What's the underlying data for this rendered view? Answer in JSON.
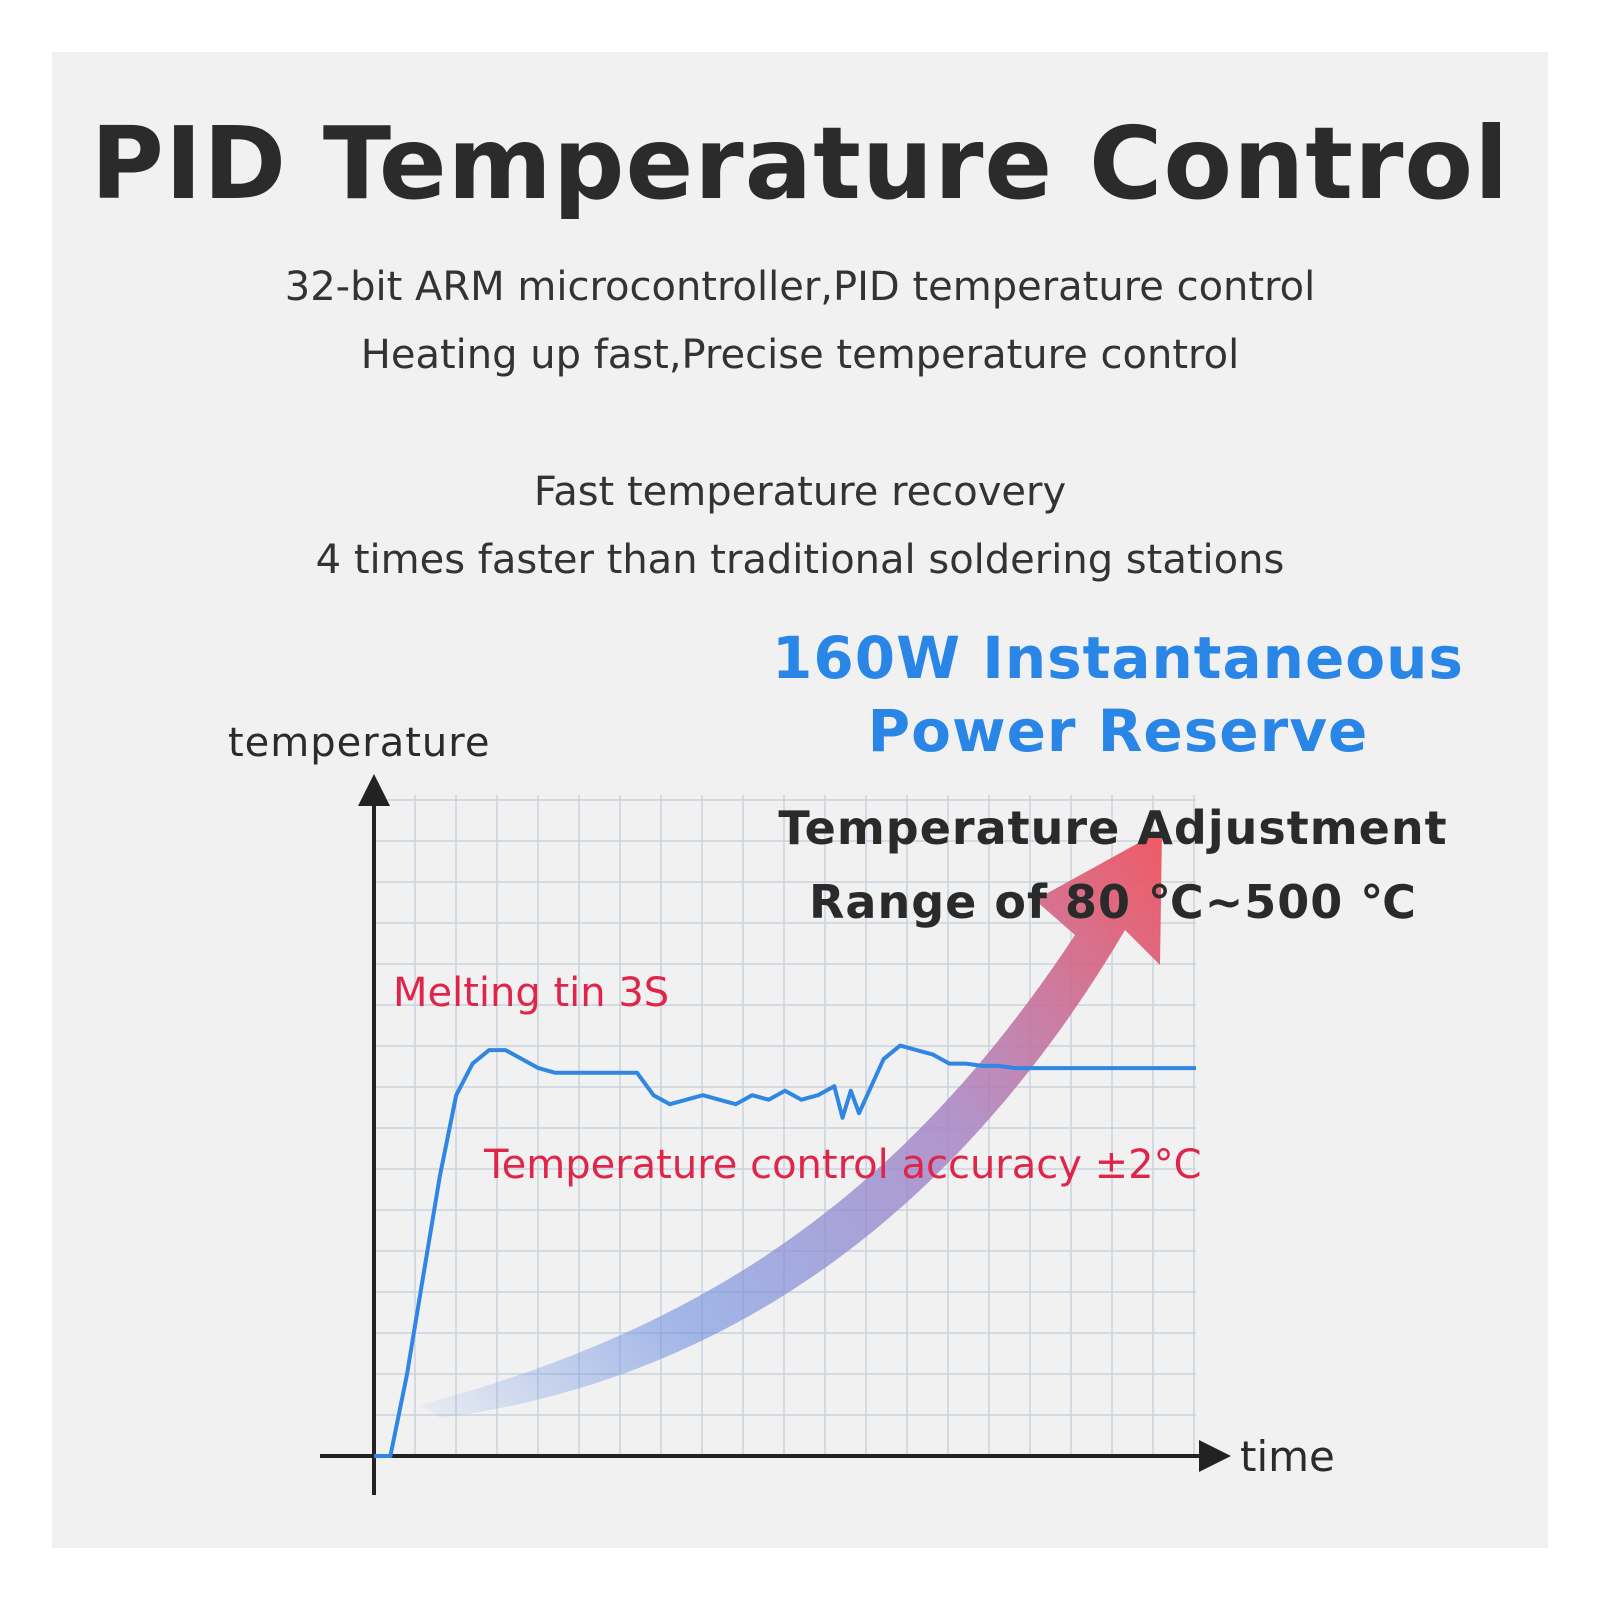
{
  "heading": {
    "title": "PID Temperature Control",
    "line1": "32-bit ARM microcontroller,PID temperature control",
    "line2": "Heating up fast,Precise temperature control",
    "line3": "Fast temperature recovery",
    "line4": "4 times faster than traditional soldering stations"
  },
  "callouts": {
    "power_line1": "160W Instantaneous",
    "power_line2": "Power Reserve",
    "range_line1": "Temperature Adjustment",
    "range_line2": "Range of 80 ℃~500 ℃",
    "melting": "Melting tin 3S",
    "accuracy": "Temperature control accuracy ±2°C"
  },
  "colors": {
    "background": "#f1f1f1",
    "title_text": "#2b2b2b",
    "accent_blue": "#2a86e6",
    "accent_red": "#e0254a",
    "curve": "#2f86e3",
    "grid": "#c9d3dc"
  },
  "chart_data": {
    "type": "line",
    "xlabel": "time",
    "ylabel": "temperature",
    "grid": true,
    "series": [
      {
        "x": [
          0,
          2,
          4,
          6,
          8,
          10,
          12,
          14,
          16,
          18,
          20,
          22,
          24,
          26,
          28,
          30,
          32,
          34,
          36,
          38,
          40,
          42,
          44,
          46,
          48,
          50,
          52,
          54,
          56,
          57,
          58,
          59,
          60,
          62,
          64,
          66,
          68,
          70,
          72,
          74,
          76,
          78,
          80,
          82,
          84,
          86,
          88,
          90,
          92,
          94,
          96,
          98,
          100
        ],
        "y": [
          0,
          0,
          18,
          40,
          62,
          80,
          87,
          90,
          90,
          88,
          86,
          85,
          85,
          85,
          85,
          85,
          85,
          80,
          78,
          79,
          80,
          79,
          78,
          80,
          79,
          81,
          79,
          80,
          82,
          75,
          81,
          76,
          80,
          88,
          91,
          90,
          89,
          87,
          87,
          86.5,
          86.5,
          86,
          86,
          86,
          86,
          86,
          86,
          86,
          86,
          86,
          86,
          86,
          86
        ]
      }
    ]
  }
}
